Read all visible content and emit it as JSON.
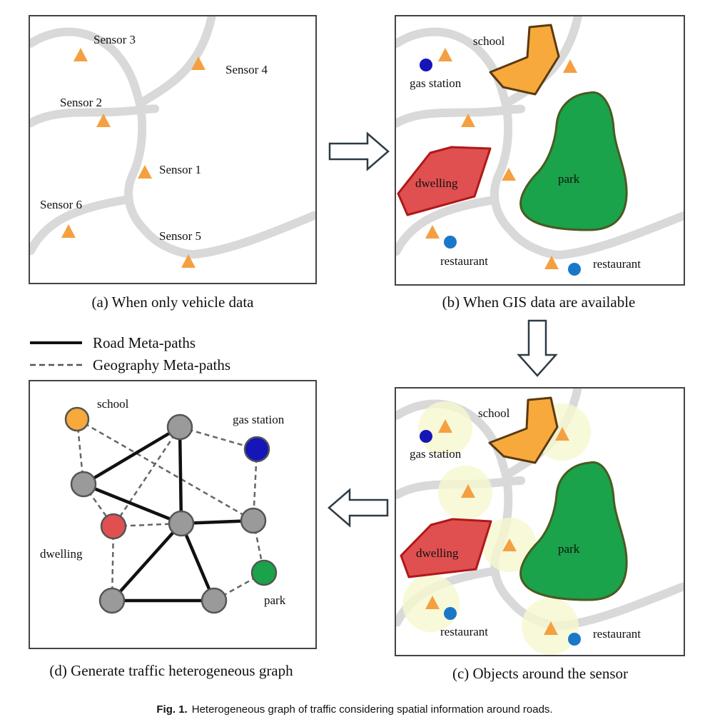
{
  "panels": {
    "a": {
      "caption": "(a) When only vehicle data",
      "sensors": [
        "Sensor 3",
        "Sensor 4",
        "Sensor 2",
        "Sensor 1",
        "Sensor 6",
        "Sensor 5"
      ]
    },
    "b": {
      "caption": "(b) When GIS data are available",
      "labels": {
        "school": "school",
        "gas_station": "gas station",
        "park": "park",
        "dwelling": "dwelling",
        "restaurant_left": "restaurant",
        "restaurant_right": "restaurant"
      }
    },
    "c": {
      "caption": "(c) Objects around the sensor",
      "labels": {
        "school": "school",
        "gas_station": "gas station",
        "park": "park",
        "dwelling": "dwelling",
        "restaurant_left": "restaurant",
        "restaurant_right": "restaurant"
      }
    },
    "d": {
      "caption": "(d)  Generate traffic heterogeneous graph",
      "labels": {
        "school": "school",
        "gas_station": "gas station",
        "dwelling": "dwelling",
        "park": "park"
      }
    }
  },
  "legend": {
    "road": "Road Meta-paths",
    "geo": "Geography Meta-paths"
  },
  "figure_caption": {
    "label": "Fig. 1.",
    "text": "Heterogeneous graph of traffic considering spatial information around roads."
  },
  "colors": {
    "road": "#d9d9d9",
    "sensor": "#f5a040",
    "school": "#f7a93c",
    "park": "#1aa34a",
    "dwelling": "#e05050",
    "gas_station": "#1515b8",
    "restaurant": "#1a78c8",
    "buffer": "#f6f7cf",
    "node_gray": "#9a9a9a"
  }
}
